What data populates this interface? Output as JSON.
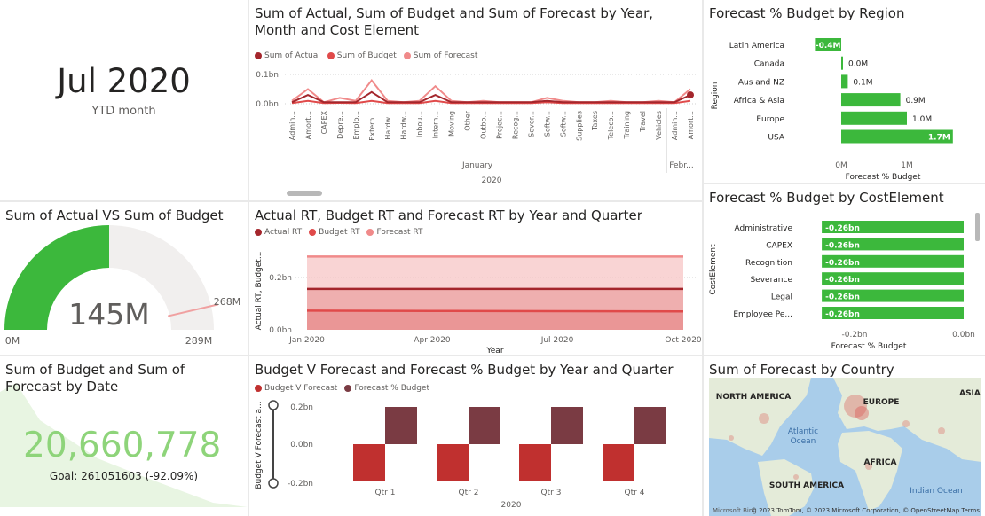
{
  "colors": {
    "actual": "#a4262c",
    "budget": "#e04a4a",
    "forecast": "#f08a8a",
    "green": "#3cb83c",
    "maroon": "#7a3b43",
    "red_bar": "#c0302f",
    "gauge_bg": "#f1efee"
  },
  "card": {
    "value": "Jul 2020",
    "label": "YTD month"
  },
  "gauge": {
    "title": "Sum of Actual VS Sum of Budget",
    "value_label": "145M",
    "min_label": "0M",
    "max_label": "289M",
    "target_label": "268M",
    "value_fraction": 0.5,
    "target_fraction": 0.927
  },
  "kpi": {
    "title": "Sum of Budget and Sum of Forecast by Date",
    "value": "20,660,778",
    "goal": "Goal: 261051603 (-92.09%)"
  },
  "line_chart": {
    "title": "Sum of Actual, Sum of Budget and Sum of Forecast by Year, Month and Cost Element",
    "legend": [
      "Sum of Actual",
      "Sum of Budget",
      "Sum of Forecast"
    ],
    "y_ticks": [
      "0.1bn",
      "0.0bn"
    ],
    "month_labels": [
      "January",
      "Febr..."
    ],
    "year_label": "2020"
  },
  "area_chart": {
    "title": "Actual RT, Budget RT and Forecast RT by Year and Quarter",
    "legend": [
      "Actual RT",
      "Budget RT",
      "Forecast RT"
    ],
    "y_axis_label": "Actual RT, Budget...",
    "y_ticks": [
      "0.2bn",
      "0.0bn"
    ],
    "x_ticks": [
      "Jan 2020",
      "Apr 2020",
      "Jul 2020",
      "Oct 2020"
    ],
    "x_axis_label": "Year"
  },
  "bar_chart": {
    "title": "Budget V Forecast and Forecast % Budget by Year and Quarter",
    "legend": [
      "Budget V Forecast",
      "Forecast % Budget"
    ],
    "y_axis_label": "Budget V Forecast a...",
    "y_ticks": [
      "0.2bn",
      "0.0bn",
      "-0.2bn"
    ],
    "x_label": "2020"
  },
  "region_chart": {
    "title": "Forecast % Budget by Region",
    "y_axis_label": "Region",
    "x_axis_label": "Forecast % Budget",
    "x_ticks": [
      "0M",
      "1M"
    ]
  },
  "costelement_chart": {
    "title": "Forecast % Budget by CostElement",
    "y_axis_label": "CostElement",
    "x_axis_label": "Forecast % Budget",
    "x_ticks": [
      "-0.2bn",
      "0.0bn"
    ]
  },
  "map": {
    "title": "Sum of Forecast by Country",
    "labels": [
      "NORTH AMERICA",
      "EUROPE",
      "ASIA",
      "Atlantic Ocean",
      "AFRICA",
      "SOUTH AMERICA",
      "Indian Ocean"
    ],
    "attribution": "© 2023 TomTom, © 2023 Microsoft Corporation, © OpenStreetMap  Terms",
    "logo": "Microsoft Bing"
  },
  "chart_data": [
    {
      "type": "line",
      "title": "Sum of Actual, Sum of Budget and Sum of Forecast by Year, Month and Cost Element",
      "categories": [
        "Admin...",
        "Amort...",
        "CAPEX",
        "Depre...",
        "Emplo...",
        "Extern...",
        "Hardw...",
        "Hardw...",
        "Inbou...",
        "Intern...",
        "Moving",
        "Other",
        "Outbo...",
        "Projec...",
        "Recog...",
        "Sever...",
        "Softw...",
        "Softw...",
        "Supplies",
        "Taxes",
        "Teleco...",
        "Training",
        "Travel",
        "Vehicles",
        "Admin...",
        "Amort..."
      ],
      "series": [
        {
          "name": "Sum of Actual",
          "values": [
            0.005,
            0.03,
            0.005,
            0.005,
            0.005,
            0.04,
            0.005,
            0.005,
            0.005,
            0.03,
            0.005,
            0.005,
            0.005,
            0.005,
            0.005,
            0.005,
            0.01,
            0.005,
            0.005,
            0.005,
            0.005,
            0.005,
            0.005,
            0.005,
            0.005,
            0.03
          ]
        },
        {
          "name": "Sum of Budget",
          "values": [
            0.002,
            0.01,
            0.002,
            0.003,
            0.002,
            0.01,
            0.002,
            0.002,
            0.002,
            0.01,
            0.002,
            0.002,
            0.002,
            0.002,
            0.002,
            0.002,
            0.005,
            0.002,
            0.002,
            0.002,
            0.002,
            0.002,
            0.002,
            0.002,
            0.002,
            0.01
          ]
        },
        {
          "name": "Sum of Forecast",
          "values": [
            0.01,
            0.05,
            0.005,
            0.02,
            0.01,
            0.08,
            0.01,
            0.005,
            0.01,
            0.06,
            0.01,
            0.005,
            0.01,
            0.005,
            0.005,
            0.005,
            0.02,
            0.01,
            0.005,
            0.005,
            0.01,
            0.005,
            0.005,
            0.01,
            0.005,
            0.05
          ]
        }
      ],
      "ylim": [
        0,
        0.1
      ]
    },
    {
      "type": "area",
      "title": "Actual RT, Budget RT and Forecast RT by Year and Quarter",
      "x": [
        "Jan 2020",
        "Apr 2020",
        "Jul 2020",
        "Oct 2020"
      ],
      "series": [
        {
          "name": "Actual RT",
          "values": [
            0.145,
            0.145,
            0.145,
            0.145
          ]
        },
        {
          "name": "Budget RT",
          "values": [
            0.068,
            0.067,
            0.066,
            0.065
          ]
        },
        {
          "name": "Forecast RT",
          "values": [
            0.26,
            0.26,
            0.26,
            0.26
          ]
        }
      ],
      "ylim": [
        0,
        0.28
      ]
    },
    {
      "type": "bar",
      "title": "Budget V Forecast and Forecast % Budget by Year and Quarter",
      "categories": [
        "Qtr 1",
        "Qtr 2",
        "Qtr 3",
        "Qtr 4"
      ],
      "series": [
        {
          "name": "Budget V Forecast",
          "values": [
            -0.2,
            -0.2,
            -0.2,
            -0.2
          ]
        },
        {
          "name": "Forecast % Budget",
          "values": [
            0.2,
            0.2,
            0.2,
            0.2
          ]
        }
      ],
      "ylim": [
        -0.2,
        0.2
      ]
    },
    {
      "type": "bar",
      "title": "Forecast % Budget by Region",
      "categories": [
        "Latin America",
        "Canada",
        "Aus and NZ",
        "Africa & Asia",
        "Europe",
        "USA"
      ],
      "values": [
        -0.4,
        0.0,
        0.1,
        0.9,
        1.0,
        1.7
      ],
      "data_labels": [
        "-0.4M",
        "0.0M",
        "0.1M",
        "0.9M",
        "1.0M",
        "1.7M"
      ],
      "xlim": [
        -0.5,
        2.0
      ]
    },
    {
      "type": "bar",
      "title": "Forecast % Budget by CostElement",
      "categories": [
        "Administrative",
        "CAPEX",
        "Recognition",
        "Severance",
        "Legal",
        "Employee Pe..."
      ],
      "values": [
        -0.26,
        -0.26,
        -0.26,
        -0.26,
        -0.26,
        -0.26
      ],
      "data_labels": [
        "-0.26bn",
        "-0.26bn",
        "-0.26bn",
        "-0.26bn",
        "-0.26bn",
        "-0.26bn"
      ],
      "xlim": [
        -0.3,
        0.0
      ]
    }
  ]
}
